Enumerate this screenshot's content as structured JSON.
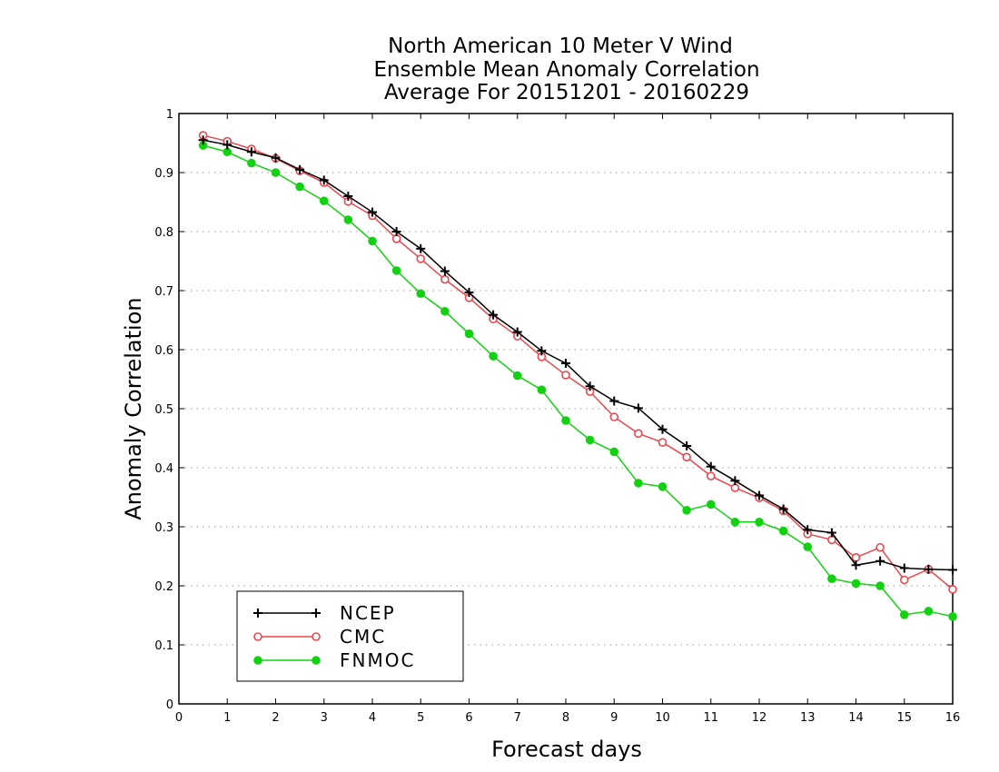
{
  "chart_data": {
    "type": "line",
    "title": [
      "North American 10 Meter V Wind",
      "Ensemble Mean Anomaly Correlation",
      "Average For 20151201 - 20160229"
    ],
    "xlabel": "Forecast days",
    "ylabel": "Anomaly Correlation",
    "xlim": [
      0,
      16
    ],
    "ylim": [
      0,
      1
    ],
    "xticks": [
      "0",
      "1",
      "2",
      "3",
      "4",
      "5",
      "6",
      "7",
      "8",
      "9",
      "10",
      "11",
      "12",
      "13",
      "14",
      "15",
      "16"
    ],
    "yticks": [
      "0",
      "0.1",
      "0.2",
      "0.3",
      "0.4",
      "0.5",
      "0.6",
      "0.7",
      "0.8",
      "0.9",
      "1"
    ],
    "grid": "horizontal dotted",
    "legend_position": "bottom-left",
    "x": [
      0.5,
      1,
      1.5,
      2,
      2.5,
      3,
      3.5,
      4,
      4.5,
      5,
      5.5,
      6,
      6.5,
      7,
      7.5,
      8,
      8.5,
      9,
      9.5,
      10,
      10.5,
      11,
      11.5,
      12,
      12.5,
      13,
      13.5,
      14,
      14.5,
      15,
      15.5,
      16
    ],
    "series": [
      {
        "name": "NCEP",
        "color": "#000000",
        "marker": "plus",
        "values": [
          0.955,
          0.947,
          0.935,
          0.925,
          0.905,
          0.887,
          0.86,
          0.833,
          0.8,
          0.771,
          0.733,
          0.697,
          0.659,
          0.63,
          0.598,
          0.577,
          0.538,
          0.513,
          0.501,
          0.465,
          0.437,
          0.402,
          0.378,
          0.353,
          0.33,
          0.295,
          0.29,
          0.235,
          0.242,
          0.23,
          0.228,
          0.227
        ]
      },
      {
        "name": "CMC",
        "color": "#e8474f",
        "marker": "open-circle",
        "values": [
          0.963,
          0.953,
          0.94,
          0.924,
          0.903,
          0.883,
          0.851,
          0.827,
          0.788,
          0.754,
          0.719,
          0.688,
          0.652,
          0.623,
          0.588,
          0.557,
          0.529,
          0.486,
          0.458,
          0.443,
          0.418,
          0.386,
          0.366,
          0.349,
          0.327,
          0.288,
          0.278,
          0.248,
          0.265,
          0.21,
          0.228,
          0.194
        ]
      },
      {
        "name": "FNMOC",
        "color": "#11d111",
        "marker": "filled-circle",
        "values": [
          0.946,
          0.935,
          0.916,
          0.9,
          0.876,
          0.852,
          0.82,
          0.784,
          0.734,
          0.695,
          0.665,
          0.627,
          0.589,
          0.556,
          0.532,
          0.48,
          0.447,
          0.427,
          0.374,
          0.368,
          0.328,
          0.338,
          0.308,
          0.308,
          0.293,
          0.266,
          0.212,
          0.204,
          0.2,
          0.151,
          0.157,
          0.148
        ]
      }
    ]
  }
}
